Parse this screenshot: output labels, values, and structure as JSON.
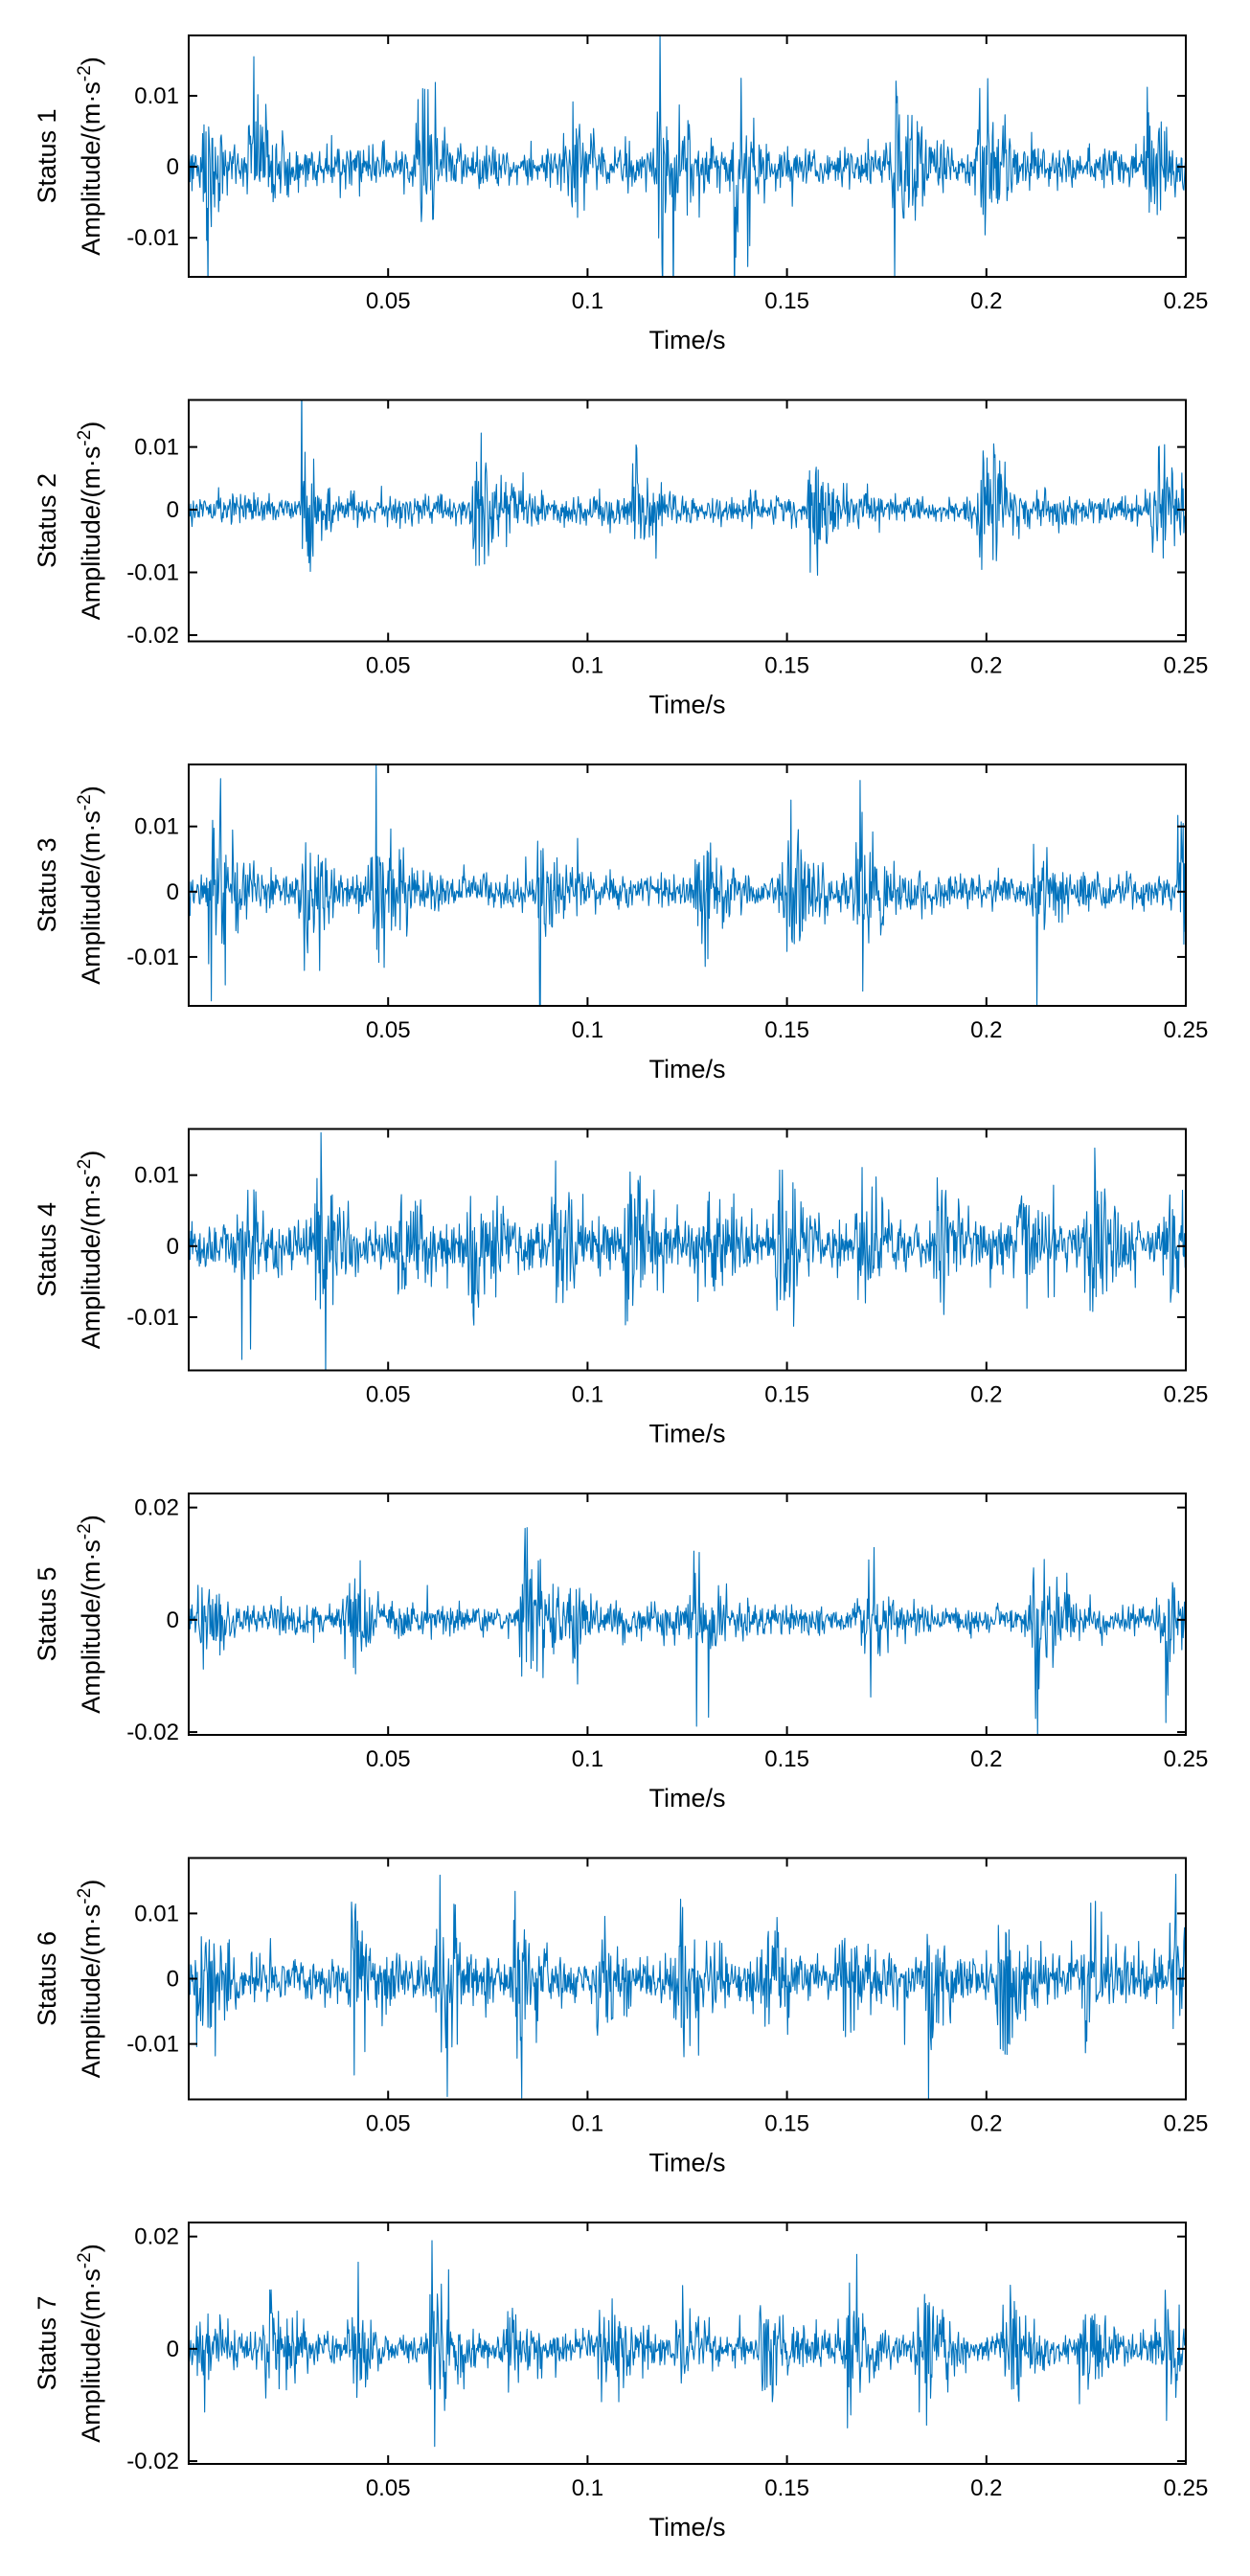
{
  "chart_data": [
    {
      "type": "line",
      "status_label": "Status 1",
      "ylabel_text": "Amplitude/(m·s",
      "ylabel_exponent": "-2",
      "ylabel_close": ")",
      "xlabel": "Time/s",
      "xlim": [
        0,
        0.25
      ],
      "ylim": [
        -0.0155,
        0.0185
      ],
      "x_ticks": [
        0.05,
        0.1,
        0.15,
        0.2,
        0.25
      ],
      "x_tick_labels": [
        "0.05",
        "0.1",
        "0.15",
        "0.2",
        "0.25"
      ],
      "y_ticks": [
        -0.01,
        0,
        0.01
      ],
      "y_tick_labels": [
        "-0.01",
        "0",
        "0.01"
      ],
      "noise_amplitude": 0.003,
      "bursts": [
        {
          "t": 0.004,
          "amp": 0.011
        },
        {
          "t": 0.016,
          "amp": 0.012
        },
        {
          "t": 0.058,
          "amp": 0.017
        },
        {
          "t": 0.095,
          "amp": 0.011
        },
        {
          "t": 0.118,
          "amp": 0.018
        },
        {
          "t": 0.137,
          "amp": 0.016
        },
        {
          "t": 0.177,
          "amp": 0.018
        },
        {
          "t": 0.198,
          "amp": 0.012
        },
        {
          "t": 0.24,
          "amp": 0.011
        }
      ],
      "color": "#0072bd"
    },
    {
      "type": "line",
      "status_label": "Status 2",
      "ylabel_text": "Amplitude/(m·s",
      "ylabel_exponent": "-2",
      "ylabel_close": ")",
      "xlabel": "Time/s",
      "xlim": [
        0,
        0.25
      ],
      "ylim": [
        -0.021,
        0.0175
      ],
      "x_ticks": [
        0.05,
        0.1,
        0.15,
        0.2,
        0.25
      ],
      "x_tick_labels": [
        "0.05",
        "0.1",
        "0.15",
        "0.2",
        "0.25"
      ],
      "y_ticks": [
        -0.02,
        -0.01,
        0,
        0.01
      ],
      "y_tick_labels": [
        "-0.02",
        "-0.01",
        "0",
        "0.01"
      ],
      "noise_amplitude": 0.0025,
      "bursts": [
        {
          "t": 0.029,
          "amp": 0.013
        },
        {
          "t": 0.072,
          "amp": 0.021
        },
        {
          "t": 0.112,
          "amp": 0.011
        },
        {
          "t": 0.156,
          "amp": 0.013
        },
        {
          "t": 0.199,
          "amp": 0.021
        },
        {
          "t": 0.242,
          "amp": 0.016
        }
      ],
      "color": "#0072bd"
    },
    {
      "type": "line",
      "status_label": "Status 3",
      "ylabel_text": "Amplitude/(m·s",
      "ylabel_exponent": "-2",
      "ylabel_close": ")",
      "xlabel": "Time/s",
      "xlim": [
        0,
        0.25
      ],
      "ylim": [
        -0.0175,
        0.0195
      ],
      "x_ticks": [
        0.05,
        0.1,
        0.15,
        0.2,
        0.25
      ],
      "x_tick_labels": [
        "0.05",
        "0.1",
        "0.15",
        "0.2",
        "0.25"
      ],
      "y_ticks": [
        -0.01,
        0,
        0.01
      ],
      "y_tick_labels": [
        "-0.01",
        "0",
        "0.01"
      ],
      "noise_amplitude": 0.003,
      "bursts": [
        {
          "t": 0.006,
          "amp": 0.017
        },
        {
          "t": 0.029,
          "amp": 0.015
        },
        {
          "t": 0.047,
          "amp": 0.017
        },
        {
          "t": 0.088,
          "amp": 0.012
        },
        {
          "t": 0.128,
          "amp": 0.011
        },
        {
          "t": 0.15,
          "amp": 0.015
        },
        {
          "t": 0.168,
          "amp": 0.018
        },
        {
          "t": 0.212,
          "amp": 0.009
        },
        {
          "t": 0.249,
          "amp": 0.016
        }
      ],
      "color": "#0072bd"
    },
    {
      "type": "line",
      "status_label": "Status 4",
      "ylabel_text": "Amplitude/(m·s",
      "ylabel_exponent": "-2",
      "ylabel_close": ")",
      "xlabel": "Time/s",
      "xlim": [
        0,
        0.25
      ],
      "ylim": [
        -0.0175,
        0.0165
      ],
      "x_ticks": [
        0.05,
        0.1,
        0.15,
        0.2,
        0.25
      ],
      "x_tick_labels": [
        "0.05",
        "0.1",
        "0.15",
        "0.2",
        "0.25"
      ],
      "y_ticks": [
        -0.01,
        0,
        0.01
      ],
      "y_tick_labels": [
        "-0.01",
        "0",
        "0.01"
      ],
      "noise_amplitude": 0.0035,
      "bursts": [
        {
          "t": 0.013,
          "amp": 0.012
        },
        {
          "t": 0.033,
          "amp": 0.016
        },
        {
          "t": 0.053,
          "amp": 0.011
        },
        {
          "t": 0.071,
          "amp": 0.014
        },
        {
          "t": 0.092,
          "amp": 0.012
        },
        {
          "t": 0.11,
          "amp": 0.016
        },
        {
          "t": 0.13,
          "amp": 0.012
        },
        {
          "t": 0.148,
          "amp": 0.017
        },
        {
          "t": 0.168,
          "amp": 0.012
        },
        {
          "t": 0.188,
          "amp": 0.011
        },
        {
          "t": 0.209,
          "amp": 0.014
        },
        {
          "t": 0.226,
          "amp": 0.016
        },
        {
          "t": 0.245,
          "amp": 0.011
        }
      ],
      "color": "#0072bd"
    },
    {
      "type": "line",
      "status_label": "Status 5",
      "ylabel_text": "Amplitude/(m·s",
      "ylabel_exponent": "-2",
      "ylabel_close": ")",
      "xlabel": "Time/s",
      "xlim": [
        0,
        0.25
      ],
      "ylim": [
        -0.0205,
        0.0225
      ],
      "x_ticks": [
        0.05,
        0.1,
        0.15,
        0.2,
        0.25
      ],
      "x_tick_labels": [
        "0.05",
        "0.1",
        "0.15",
        "0.2",
        "0.25"
      ],
      "y_ticks": [
        -0.02,
        0,
        0.02
      ],
      "y_tick_labels": [
        "-0.02",
        "0",
        "0.02"
      ],
      "noise_amplitude": 0.003,
      "bursts": [
        {
          "t": 0.003,
          "amp": 0.011
        },
        {
          "t": 0.04,
          "amp": 0.015
        },
        {
          "t": 0.084,
          "amp": 0.022
        },
        {
          "t": 0.096,
          "amp": 0.009
        },
        {
          "t": 0.127,
          "amp": 0.015
        },
        {
          "t": 0.169,
          "amp": 0.013
        },
        {
          "t": 0.212,
          "amp": 0.018
        },
        {
          "t": 0.245,
          "amp": 0.009
        }
      ],
      "color": "#0072bd"
    },
    {
      "type": "line",
      "status_label": "Status 6",
      "ylabel_text": "Amplitude/(m·s",
      "ylabel_exponent": "-2",
      "ylabel_close": ")",
      "xlabel": "Time/s",
      "xlim": [
        0,
        0.25
      ],
      "ylim": [
        -0.0185,
        0.0185
      ],
      "x_ticks": [
        0.05,
        0.1,
        0.15,
        0.2,
        0.25
      ],
      "x_tick_labels": [
        "0.05",
        "0.1",
        "0.15",
        "0.2",
        "0.25"
      ],
      "y_ticks": [
        -0.01,
        0,
        0.01
      ],
      "y_tick_labels": [
        "-0.01",
        "0",
        "0.01"
      ],
      "noise_amplitude": 0.0035,
      "bursts": [
        {
          "t": 0.003,
          "amp": 0.018
        },
        {
          "t": 0.041,
          "amp": 0.014
        },
        {
          "t": 0.063,
          "amp": 0.018
        },
        {
          "t": 0.082,
          "amp": 0.018
        },
        {
          "t": 0.103,
          "amp": 0.012
        },
        {
          "t": 0.123,
          "amp": 0.018
        },
        {
          "t": 0.145,
          "amp": 0.012
        },
        {
          "t": 0.164,
          "amp": 0.014
        },
        {
          "t": 0.185,
          "amp": 0.013
        },
        {
          "t": 0.204,
          "amp": 0.018
        },
        {
          "t": 0.225,
          "amp": 0.014
        },
        {
          "t": 0.247,
          "amp": 0.014
        }
      ],
      "color": "#0072bd"
    },
    {
      "type": "line",
      "status_label": "Status 7",
      "ylabel_text": "Amplitude/(m·s",
      "ylabel_exponent": "-2",
      "ylabel_close": ")",
      "xlabel": "Time/s",
      "xlim": [
        0,
        0.25
      ],
      "ylim": [
        -0.0205,
        0.0225
      ],
      "x_ticks": [
        0.05,
        0.1,
        0.15,
        0.2,
        0.25
      ],
      "x_tick_labels": [
        "0.05",
        "0.1",
        "0.15",
        "0.2",
        "0.25"
      ],
      "y_ticks": [
        -0.02,
        0,
        0.02
      ],
      "y_tick_labels": [
        "-0.02",
        "0",
        "0.02"
      ],
      "noise_amplitude": 0.003,
      "bursts": [
        {
          "t": 0.003,
          "amp": 0.01
        },
        {
          "t": 0.02,
          "amp": 0.015
        },
        {
          "t": 0.041,
          "amp": 0.013
        },
        {
          "t": 0.061,
          "amp": 0.021
        },
        {
          "t": 0.08,
          "amp": 0.011
        },
        {
          "t": 0.104,
          "amp": 0.013
        },
        {
          "t": 0.123,
          "amp": 0.011
        },
        {
          "t": 0.144,
          "amp": 0.012
        },
        {
          "t": 0.165,
          "amp": 0.016
        },
        {
          "t": 0.183,
          "amp": 0.018
        },
        {
          "t": 0.205,
          "amp": 0.011
        },
        {
          "t": 0.224,
          "amp": 0.014
        },
        {
          "t": 0.245,
          "amp": 0.009
        }
      ],
      "color": "#0072bd"
    }
  ]
}
